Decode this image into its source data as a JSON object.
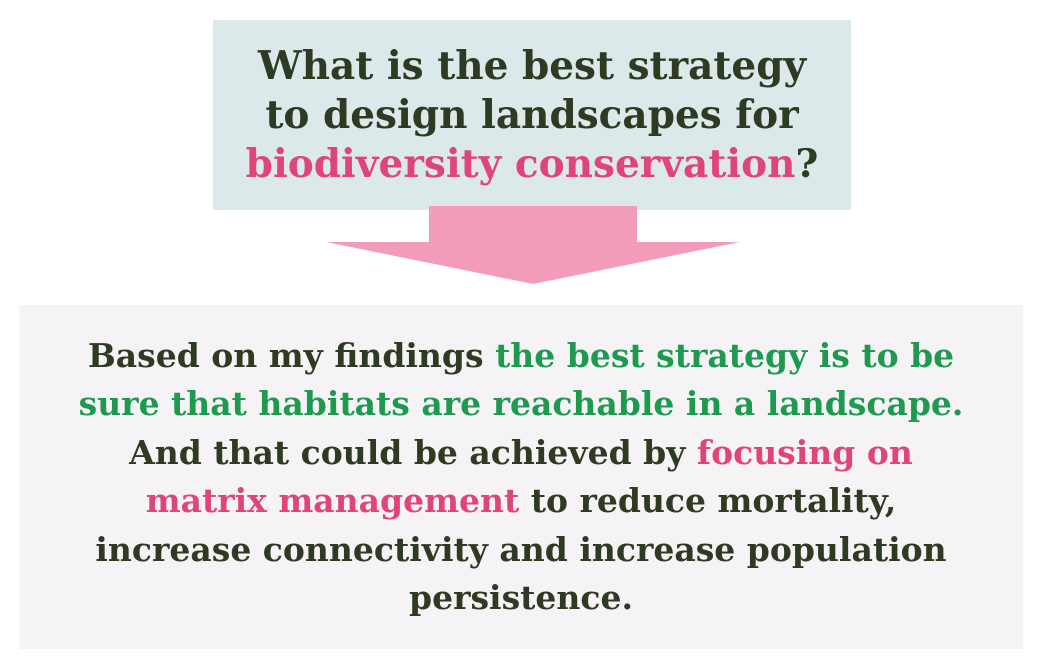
{
  "question": {
    "line_1": "What is the best strategy",
    "line_2": "to design landscapes for",
    "highlight": "biodiversity conservation",
    "end": "?"
  },
  "answer": {
    "part_1": "Based on my findings ",
    "highlight_green": "the best strategy is to be sure that habitats are reachable in a landscape.",
    "part_2": " And that could be achieved by ",
    "highlight_pink": "focusing on matrix management",
    "part_3": " to reduce mortality, increase connectivity and increase population persistence."
  },
  "colors": {
    "question_box_bg": "#dce9ea",
    "answer_box_bg": "#f5f3f5",
    "arrow": "#f39cb8",
    "text_dark": "#2f3a22",
    "accent_pink": "#e0457a",
    "accent_green": "#1e9a50"
  }
}
